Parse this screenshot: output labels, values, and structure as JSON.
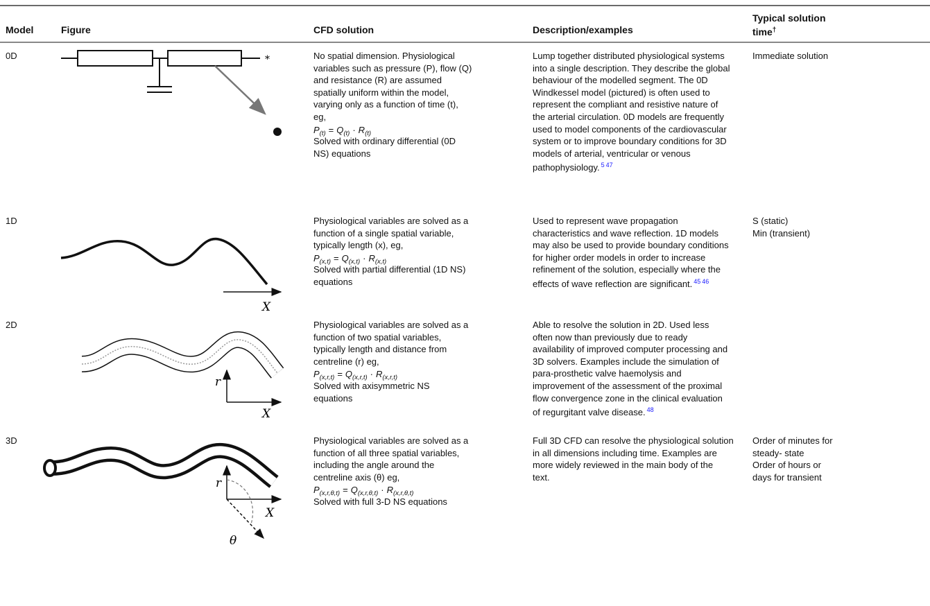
{
  "header": {
    "model": "Model",
    "figure": "Figure",
    "cfd": "CFD solution",
    "description": "Description/examples",
    "time": "Typical solution time",
    "time_note": "†"
  },
  "rows": [
    {
      "model": "0D",
      "figure_labels": [
        "*"
      ],
      "cfd_lines": [
        "No spatial dimension. Physiological",
        "variables such as pressure (P), flow (Q)",
        "and resistance (R) are assumed",
        "spatially uniform within the model,",
        "varying only as a function of time (t),",
        "eg,"
      ],
      "equation": {
        "terms": [
          [
            "P",
            "(t)"
          ],
          [
            "Q",
            "(t)"
          ],
          [
            "R",
            "(t)"
          ]
        ],
        "ops": [
          "=",
          "·"
        ]
      },
      "cfd_after": [
        "Solved with ordinary differential (0D",
        "NS) equations"
      ],
      "description": [
        "Lump together distributed physiological systems",
        "into a single description. They describe the global",
        "behaviour of the modelled segment. The 0D",
        "Windkessel model (pictured) is often used to",
        "represent the compliant and resistive nature of",
        "the arterial circulation. 0D models are frequently",
        "used to model components of the cardiovascular",
        "system or to improve boundary conditions for 3D",
        "models of arterial, ventricular or venous",
        "pathophysiology."
      ],
      "refs": [
        "5",
        "47"
      ],
      "time": [
        "Immediate solution"
      ]
    },
    {
      "model": "1D",
      "figure_labels": [
        "X"
      ],
      "cfd_lines": [
        "Physiological variables are solved as a",
        "function of a single spatial variable,",
        "typically length (x), eg,"
      ],
      "equation": {
        "terms": [
          [
            "P",
            "(x,t)"
          ],
          [
            "Q",
            "(x,t)"
          ],
          [
            "R",
            "(x,t)"
          ]
        ],
        "ops": [
          "=",
          "·"
        ]
      },
      "cfd_after": [
        "Solved with partial differential (1D NS)",
        "equations"
      ],
      "description": [
        "Used to represent wave propagation",
        "characteristics and wave reflection. 1D models",
        "may also be used to provide boundary conditions",
        "for higher order models in order to increase",
        "refinement of the solution, especially where the",
        "effects of wave reflection are significant."
      ],
      "refs": [
        "45",
        "46"
      ],
      "time": [
        "S (static)",
        "Min (transient)"
      ]
    },
    {
      "model": "2D",
      "figure_labels": [
        "r",
        "X"
      ],
      "cfd_lines": [
        "Physiological variables are solved as a",
        "function of two spatial variables,",
        "typically length and distance from",
        "centreline (r) eg,"
      ],
      "equation": {
        "terms": [
          [
            "P",
            "(x,r,t)"
          ],
          [
            "Q",
            "(x,r,t)"
          ],
          [
            "R",
            "(x,r,t)"
          ]
        ],
        "ops": [
          "=",
          "·"
        ]
      },
      "cfd_after": [
        "Solved with axisymmetric NS",
        "equations"
      ],
      "description": [
        "Able to resolve the solution in 2D. Used less",
        "often now than previously due to ready",
        "availability of improved computer processing and",
        "3D solvers. Examples include the simulation of",
        "para-prosthetic valve haemolysis and",
        "improvement of the assessment of the proximal",
        "flow convergence zone in the clinical evaluation",
        "of regurgitant valve disease."
      ],
      "refs": [
        "48"
      ]
    },
    {
      "model": "3D",
      "figure_labels": [
        "r",
        "X",
        "θ"
      ],
      "cfd_lines": [
        "Physiological variables are solved as a",
        "function of all three spatial variables,",
        "including the angle around the",
        "centreline axis (θ) eg,"
      ],
      "equation": {
        "terms": [
          [
            "P",
            "(x,r,θ,t)"
          ],
          [
            "Q",
            "(x,r,θ,t)"
          ],
          [
            "R",
            "(x,r,θ,t)"
          ]
        ],
        "ops": [
          "=",
          "·"
        ]
      },
      "cfd_after": [
        "Solved with full 3-D NS equations"
      ],
      "description": [
        "Full 3D CFD can resolve the physiological solution",
        "in all dimensions including time. Examples are",
        "more widely reviewed in the main body of the",
        "text."
      ],
      "time": [
        "Order of minutes for",
        "steady- state",
        "Order of hours or",
        "days for transient"
      ]
    }
  ]
}
